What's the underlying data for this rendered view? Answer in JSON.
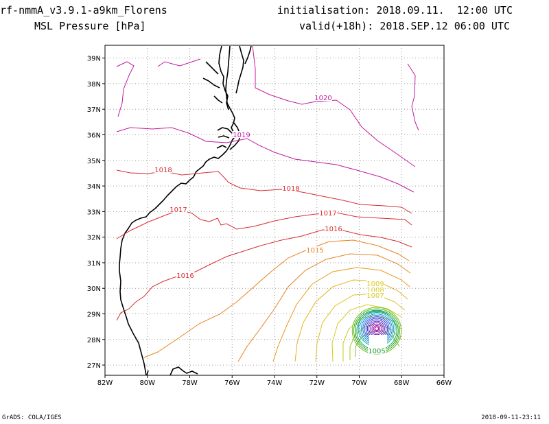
{
  "header": {
    "model_title": "rf-nmmA_v3.9.1-a9km_Florens",
    "variable": "MSL Pressure [hPa]",
    "initialisation": "initialisation: 2018.09.11.  12:00 UTC",
    "valid": "valid(+18h): 2018.SEP.12 06:00 UTC"
  },
  "footer": {
    "left": "GrADS: COLA/IGES",
    "right": "2018-09-11-23:11"
  },
  "map": {
    "lat_ticks": [
      "39N",
      "38N",
      "37N",
      "36N",
      "35N",
      "34N",
      "33N",
      "32N",
      "31N",
      "30N",
      "29N",
      "28N",
      "27N"
    ],
    "lon_ticks": [
      "82W",
      "80W",
      "78W",
      "76W",
      "74W",
      "72W",
      "70W",
      "68W",
      "66W"
    ],
    "lat_range": [
      26.6,
      39.5
    ],
    "lon_range": [
      -82,
      -66
    ],
    "grid": true,
    "coastline_color": "#000000"
  },
  "contour_labels": [
    {
      "text": "1020",
      "color": "#c0199e"
    },
    {
      "text": "1019",
      "color": "#c0199e"
    },
    {
      "text": "1018",
      "color": "#d82c33"
    },
    {
      "text": "1018",
      "color": "#d82c33"
    },
    {
      "text": "1017",
      "color": "#d82c33"
    },
    {
      "text": "1017",
      "color": "#d82c33"
    },
    {
      "text": "1016",
      "color": "#d82c33"
    },
    {
      "text": "1016",
      "color": "#d82c33"
    },
    {
      "text": "1015",
      "color": "#e8821e"
    },
    {
      "text": "1009",
      "color": "#d8c81e"
    },
    {
      "text": "1008",
      "color": "#d8c81e"
    },
    {
      "text": "1007",
      "color": "#d8c81e"
    },
    {
      "text": "1005",
      "color": "#1e9e28"
    }
  ],
  "colors": {
    "magenta": "#c0199e",
    "red": "#d82c33",
    "orange": "#e8821e",
    "yellow": "#d8c81e",
    "green": "#1e9e28",
    "cyan": "#18b0c8",
    "blue": "#2030d8",
    "purple": "#7020c0"
  }
}
